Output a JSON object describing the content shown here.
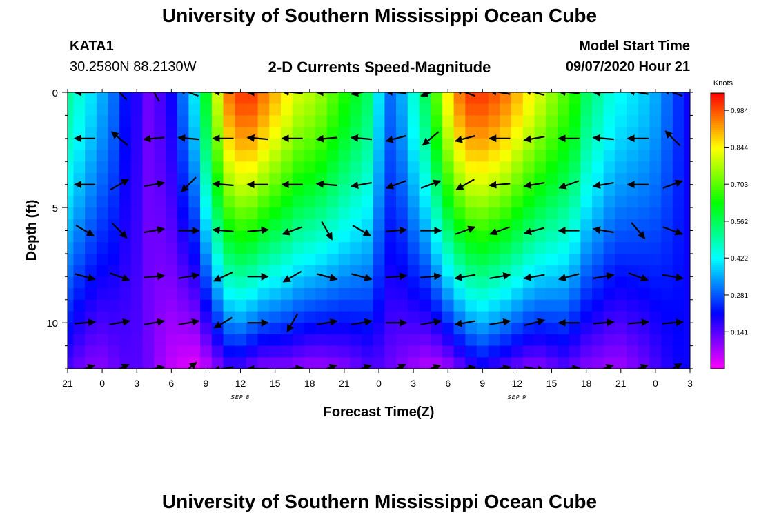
{
  "page": {
    "title": "University of Southern Mississippi Ocean Cube",
    "footer_title": "University of Southern Mississippi Ocean Cube"
  },
  "station": {
    "id": "KATA1",
    "coords": "30.2580N 88.2130W"
  },
  "model": {
    "label": "Model Start Time",
    "time": "09/07/2020 Hour 21"
  },
  "chart_data": {
    "type": "heatmap",
    "title": "2-D Currents Speed-Magnitude",
    "xlabel": "Forecast Time(Z)",
    "ylabel": "Depth (ft)",
    "units": "Knots",
    "x_ticks": [
      "21",
      "0",
      "3",
      "6",
      "9",
      "12",
      "15",
      "18",
      "21",
      "0",
      "3",
      "6",
      "9",
      "12",
      "15",
      "18",
      "21",
      "0",
      "3"
    ],
    "x_range_hours": [
      0,
      54
    ],
    "date_labels": [
      {
        "label": "SEP 8",
        "hour": 15
      },
      {
        "label": "SEP 9",
        "hour": 39
      }
    ],
    "y_ticks": [
      0,
      5,
      10
    ],
    "ylim": [
      0,
      12
    ],
    "colorbar": {
      "ticks": [
        0.141,
        0.281,
        0.422,
        0.562,
        0.703,
        0.844,
        0.984
      ],
      "tick_labels": [
        "0.141",
        "0.281",
        "0.422",
        "0.562",
        "0.703",
        "0.844",
        "0.984"
      ],
      "range": [
        0.0,
        1.05
      ],
      "stops": [
        "#ff00ff",
        "#8000ff",
        "#0000ff",
        "#0080ff",
        "#00ffff",
        "#00ff80",
        "#00ff00",
        "#80ff00",
        "#ffff00",
        "#ff8000",
        "#ff0000"
      ]
    },
    "depth_levels": [
      0,
      2,
      4,
      6,
      8,
      10,
      12
    ],
    "speed_profile": {
      "hours": [
        0,
        1,
        2,
        3,
        4,
        5,
        6,
        7,
        8,
        9,
        10,
        11,
        12,
        13,
        14,
        15,
        16,
        17,
        18,
        19,
        20,
        21,
        22,
        23,
        24,
        25,
        26,
        27,
        28,
        29,
        30,
        31,
        32,
        33,
        34,
        35,
        36,
        37,
        38,
        39,
        40,
        41,
        42,
        43,
        44,
        45,
        46,
        47,
        48,
        49,
        50,
        51,
        52,
        53,
        54
      ],
      "surface": [
        0.5,
        0.45,
        0.4,
        0.35,
        0.3,
        0.22,
        0.18,
        0.12,
        0.15,
        0.2,
        0.3,
        0.4,
        0.6,
        0.8,
        0.95,
        1.0,
        1.0,
        0.95,
        0.9,
        0.85,
        0.8,
        0.78,
        0.75,
        0.7,
        0.65,
        0.6,
        0.55,
        0.4,
        0.3,
        0.35,
        0.45,
        0.55,
        0.7,
        0.85,
        0.95,
        1.0,
        1.0,
        0.98,
        0.95,
        0.9,
        0.85,
        0.8,
        0.75,
        0.7,
        0.65,
        0.55,
        0.5,
        0.45,
        0.42,
        0.4,
        0.38,
        0.35,
        0.3,
        0.25,
        0.2
      ],
      "bottom": [
        0.15,
        0.12,
        0.1,
        0.1,
        0.12,
        0.14,
        0.14,
        0.12,
        0.08,
        0.05,
        0.03,
        0.02,
        0.05,
        0.1,
        0.15,
        0.15,
        0.12,
        0.1,
        0.1,
        0.1,
        0.09,
        0.08,
        0.08,
        0.09,
        0.1,
        0.12,
        0.14,
        0.14,
        0.12,
        0.1,
        0.08,
        0.06,
        0.06,
        0.08,
        0.12,
        0.16,
        0.18,
        0.16,
        0.14,
        0.12,
        0.1,
        0.1,
        0.12,
        0.14,
        0.12,
        0.1,
        0.09,
        0.08,
        0.08,
        0.1,
        0.12,
        0.15,
        0.18,
        0.2,
        0.2
      ]
    },
    "vector_field": {
      "depths": [
        0,
        2,
        4,
        6,
        8,
        10,
        12
      ],
      "hours": [
        1.5,
        4.5,
        7.5,
        10.5,
        13.5,
        16.5,
        19.5,
        22.5,
        25.5,
        28.5,
        31.5,
        34.5,
        37.5,
        40.5,
        43.5,
        46.5,
        49.5,
        52.5
      ],
      "direction_deg": [
        [
          180,
          135,
          120,
          160,
          175,
          180,
          175,
          180,
          190,
          175,
          200,
          160,
          170,
          165,
          175,
          180,
          170,
          160
        ],
        [
          180,
          140,
          185,
          175,
          180,
          175,
          180,
          185,
          175,
          195,
          220,
          195,
          180,
          190,
          180,
          175,
          180,
          135
        ],
        [
          180,
          30,
          10,
          225,
          175,
          180,
          180,
          175,
          190,
          200,
          20,
          210,
          185,
          190,
          200,
          190,
          180,
          20
        ],
        [
          330,
          315,
          10,
          0,
          175,
          5,
          200,
          300,
          330,
          5,
          0,
          20,
          200,
          195,
          180,
          170,
          310,
          340
        ],
        [
          345,
          340,
          5,
          10,
          205,
          0,
          210,
          345,
          345,
          5,
          5,
          190,
          10,
          190,
          195,
          10,
          340,
          350
        ],
        [
          5,
          10,
          10,
          10,
          210,
          0,
          240,
          10,
          10,
          0,
          10,
          190,
          10,
          15,
          180,
          5,
          5,
          5
        ],
        [
          20,
          25,
          10,
          40,
          190,
          180,
          5,
          20,
          20,
          25,
          20,
          10,
          10,
          350,
          5,
          20,
          20,
          30
        ]
      ]
    }
  }
}
